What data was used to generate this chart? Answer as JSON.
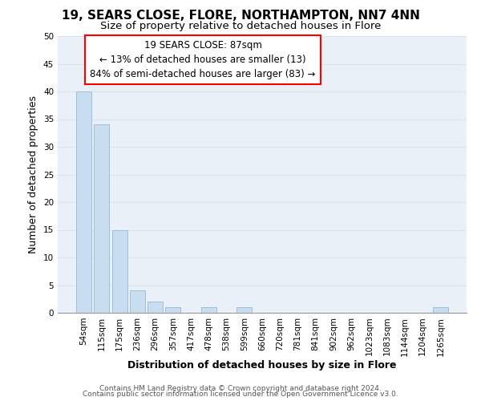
{
  "title": "19, SEARS CLOSE, FLORE, NORTHAMPTON, NN7 4NN",
  "subtitle": "Size of property relative to detached houses in Flore",
  "xlabel": "Distribution of detached houses by size in Flore",
  "ylabel": "Number of detached properties",
  "bar_color": "#c8ddf0",
  "bar_edge_color": "#a0bfd8",
  "categories": [
    "54sqm",
    "115sqm",
    "175sqm",
    "236sqm",
    "296sqm",
    "357sqm",
    "417sqm",
    "478sqm",
    "538sqm",
    "599sqm",
    "660sqm",
    "720sqm",
    "781sqm",
    "841sqm",
    "902sqm",
    "962sqm",
    "1023sqm",
    "1083sqm",
    "1144sqm",
    "1204sqm",
    "1265sqm"
  ],
  "values": [
    40,
    34,
    15,
    4,
    2,
    1,
    0,
    1,
    0,
    1,
    0,
    0,
    0,
    0,
    0,
    0,
    0,
    0,
    0,
    0,
    1
  ],
  "ylim": [
    0,
    50
  ],
  "yticks": [
    0,
    5,
    10,
    15,
    20,
    25,
    30,
    35,
    40,
    45,
    50
  ],
  "annotation_line1": "19 SEARS CLOSE: 87sqm",
  "annotation_line2": "← 13% of detached houses are smaller (13)",
  "annotation_line3": "84% of semi-detached houses are larger (83) →",
  "footer_line1": "Contains HM Land Registry data © Crown copyright and database right 2024.",
  "footer_line2": "Contains public sector information licensed under the Open Government Licence v3.0.",
  "grid_color": "#d8e4f0",
  "background_color": "#eaf0f8",
  "title_fontsize": 11,
  "subtitle_fontsize": 9.5,
  "axis_label_fontsize": 9,
  "tick_fontsize": 7.5,
  "annotation_fontsize": 8.5,
  "footer_fontsize": 6.5
}
